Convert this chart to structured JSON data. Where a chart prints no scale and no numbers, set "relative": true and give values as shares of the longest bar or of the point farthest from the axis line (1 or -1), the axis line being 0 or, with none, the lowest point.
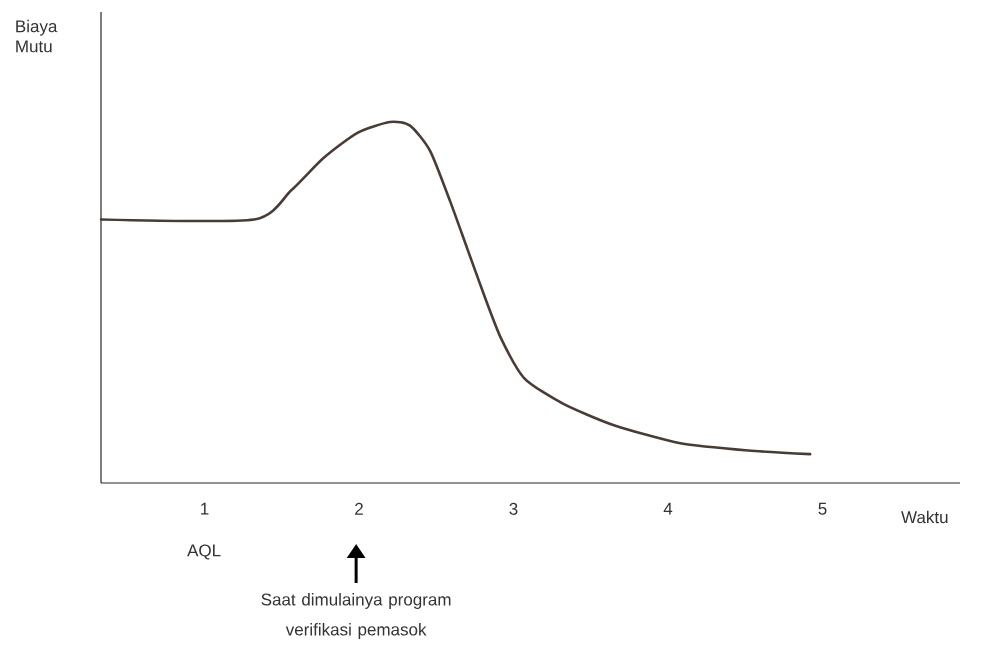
{
  "chart_data": {
    "type": "line",
    "relative": true,
    "xlabel": "Waktu",
    "ylabel": "Biaya Mutu",
    "xlim": [
      0.33,
      5.89
    ],
    "xticks": [
      1,
      2,
      3,
      4,
      5
    ],
    "annotations": [
      "AQL",
      "Saat dimulainya program verifikasi pemasok"
    ],
    "series": [
      {
        "color": "#4a3c34",
        "x": [
          0.33,
          1.32,
          1.56,
          1.77,
          1.99,
          2.2,
          2.33,
          2.46,
          2.59,
          2.7,
          2.81,
          2.92,
          3.07,
          3.32,
          3.65,
          4.08,
          4.52,
          4.92
        ],
        "values": [
          0.73,
          0.73,
          0.81,
          0.9,
          0.97,
          1.0,
          0.99,
          0.92,
          0.78,
          0.65,
          0.52,
          0.4,
          0.29,
          0.22,
          0.16,
          0.11,
          0.09,
          0.08
        ]
      }
    ]
  }
}
